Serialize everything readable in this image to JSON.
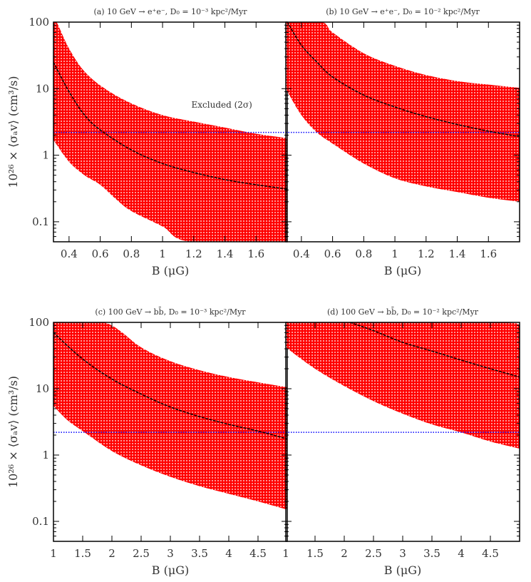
{
  "chart_data": [
    {
      "type": "area",
      "title": "(a) 10 GeV → e⁺e⁻,  D₀ = 10⁻³ kpc²/Myr",
      "xlabel": "B (μG)",
      "ylabel": "10²⁶ × ⟨σₐv⟩ (cm³/s)",
      "xlim": [
        0.3,
        1.8
      ],
      "ylim": [
        0.05,
        100
      ],
      "yscale": "log",
      "xticks": [
        "0.4",
        "0.6",
        "0.8",
        "1",
        "1.2",
        "1.4",
        "1.6"
      ],
      "yticks": [
        "0.1",
        "1",
        "10",
        "100"
      ],
      "annotation": "Excluded (2σ)",
      "band_upper": [
        [
          0.3,
          100
        ],
        [
          0.32,
          100
        ],
        [
          0.4,
          40
        ],
        [
          0.5,
          18
        ],
        [
          0.63,
          10
        ],
        [
          0.8,
          6
        ],
        [
          1.0,
          4
        ],
        [
          1.2,
          3.2
        ],
        [
          1.4,
          2.6
        ],
        [
          1.6,
          2.1
        ],
        [
          1.8,
          1.8
        ]
      ],
      "band_lower": [
        [
          0.3,
          1.7
        ],
        [
          0.4,
          0.8
        ],
        [
          0.5,
          0.5
        ],
        [
          0.6,
          0.36
        ],
        [
          0.7,
          0.22
        ],
        [
          0.8,
          0.145
        ],
        [
          1.0,
          0.085
        ],
        [
          1.18,
          0.05
        ],
        [
          1.8,
          0.05
        ]
      ],
      "central": [
        [
          0.3,
          25
        ],
        [
          0.4,
          9
        ],
        [
          0.5,
          4
        ],
        [
          0.6,
          2.4
        ],
        [
          0.8,
          1.2
        ],
        [
          1.0,
          0.75
        ],
        [
          1.2,
          0.55
        ],
        [
          1.4,
          0.43
        ],
        [
          1.6,
          0.36
        ],
        [
          1.8,
          0.31
        ]
      ],
      "reference_line": 2.2
    },
    {
      "type": "area",
      "title": "(b) 10 GeV → e⁺e⁻,  D₀ = 10⁻² kpc²/Myr",
      "xlabel": "B (μG)",
      "xlim": [
        0.3,
        1.8
      ],
      "ylim": [
        0.05,
        100
      ],
      "yscale": "log",
      "xticks": [
        "0.4",
        "0.6",
        "0.8",
        "1",
        "1.2",
        "1.4",
        "1.6"
      ],
      "band_upper": [
        [
          0.3,
          100
        ],
        [
          0.53,
          100
        ],
        [
          0.6,
          70
        ],
        [
          0.8,
          34
        ],
        [
          1.0,
          22
        ],
        [
          1.2,
          16
        ],
        [
          1.4,
          13
        ],
        [
          1.6,
          11.5
        ],
        [
          1.8,
          10.3
        ]
      ],
      "band_lower": [
        [
          0.3,
          10
        ],
        [
          0.4,
          4
        ],
        [
          0.5,
          2.2
        ],
        [
          0.6,
          1.5
        ],
        [
          0.8,
          0.75
        ],
        [
          1.0,
          0.45
        ],
        [
          1.2,
          0.34
        ],
        [
          1.4,
          0.28
        ],
        [
          1.6,
          0.23
        ],
        [
          1.8,
          0.2
        ]
      ],
      "central": [
        [
          0.31,
          100
        ],
        [
          0.4,
          45
        ],
        [
          0.5,
          25
        ],
        [
          0.6,
          15
        ],
        [
          0.8,
          8
        ],
        [
          1.0,
          5.3
        ],
        [
          1.2,
          3.8
        ],
        [
          1.4,
          2.9
        ],
        [
          1.6,
          2.3
        ],
        [
          1.8,
          1.9
        ]
      ],
      "reference_line": 2.2
    },
    {
      "type": "area",
      "title": "(c) 100 GeV → bb̄,  D₀ = 10⁻³ kpc²/Myr",
      "xlabel": "B (μG)",
      "ylabel": "10²⁶ × ⟨σₐv⟩ (cm³/s)",
      "xlim": [
        1,
        5
      ],
      "ylim": [
        0.05,
        100
      ],
      "yscale": "log",
      "xticks": [
        "1",
        "1.5",
        "2",
        "2.5",
        "3",
        "3.5",
        "4",
        "4.5"
      ],
      "yticks": [
        "0.1",
        "1",
        "10",
        "100"
      ],
      "band_upper": [
        [
          1,
          100
        ],
        [
          1.87,
          100
        ],
        [
          2.5,
          42
        ],
        [
          3,
          26
        ],
        [
          3.5,
          19
        ],
        [
          4,
          15
        ],
        [
          4.5,
          12.5
        ],
        [
          5,
          10.5
        ]
      ],
      "band_lower": [
        [
          1,
          5.5
        ],
        [
          1.25,
          3.3
        ],
        [
          1.5,
          2.3
        ],
        [
          2,
          1.15
        ],
        [
          2.5,
          0.7
        ],
        [
          3,
          0.47
        ],
        [
          3.5,
          0.34
        ],
        [
          4,
          0.26
        ],
        [
          4.5,
          0.2
        ],
        [
          5,
          0.15
        ]
      ],
      "central": [
        [
          1,
          70
        ],
        [
          1.5,
          28
        ],
        [
          2,
          14
        ],
        [
          2.5,
          8.3
        ],
        [
          3,
          5.3
        ],
        [
          3.5,
          3.8
        ],
        [
          4,
          2.9
        ],
        [
          4.5,
          2.3
        ],
        [
          5,
          1.75
        ]
      ],
      "reference_line": 2.2
    },
    {
      "type": "area",
      "title": "(d) 100 GeV → bb̄,  D₀ = 10⁻² kpc²/Myr",
      "xlabel": "B (μG)",
      "xlim": [
        1,
        5
      ],
      "ylim": [
        0.05,
        100
      ],
      "yscale": "log",
      "xticks": [
        "1",
        "1.5",
        "2",
        "2.5",
        "3",
        "3.5",
        "4",
        "4.5"
      ],
      "band_upper": [
        [
          1,
          100
        ],
        [
          4.5,
          100
        ],
        [
          5,
          92
        ]
      ],
      "band_lower": [
        [
          1,
          42
        ],
        [
          1.5,
          20
        ],
        [
          2,
          11
        ],
        [
          2.5,
          6.5
        ],
        [
          3,
          4.2
        ],
        [
          3.5,
          2.9
        ],
        [
          4,
          2.2
        ],
        [
          4.5,
          1.6
        ],
        [
          5,
          1.25
        ]
      ],
      "central": [
        [
          2.1,
          100
        ],
        [
          2.5,
          75
        ],
        [
          3,
          50
        ],
        [
          3.5,
          37
        ],
        [
          4,
          27
        ],
        [
          4.5,
          20
        ],
        [
          5,
          15
        ]
      ],
      "reference_line": 2.2
    }
  ],
  "colors": {
    "band": "#ff0000",
    "band_dots": "#ffffff",
    "central": "#000000",
    "reference_line": "#0000ff",
    "axes": "#000000"
  }
}
